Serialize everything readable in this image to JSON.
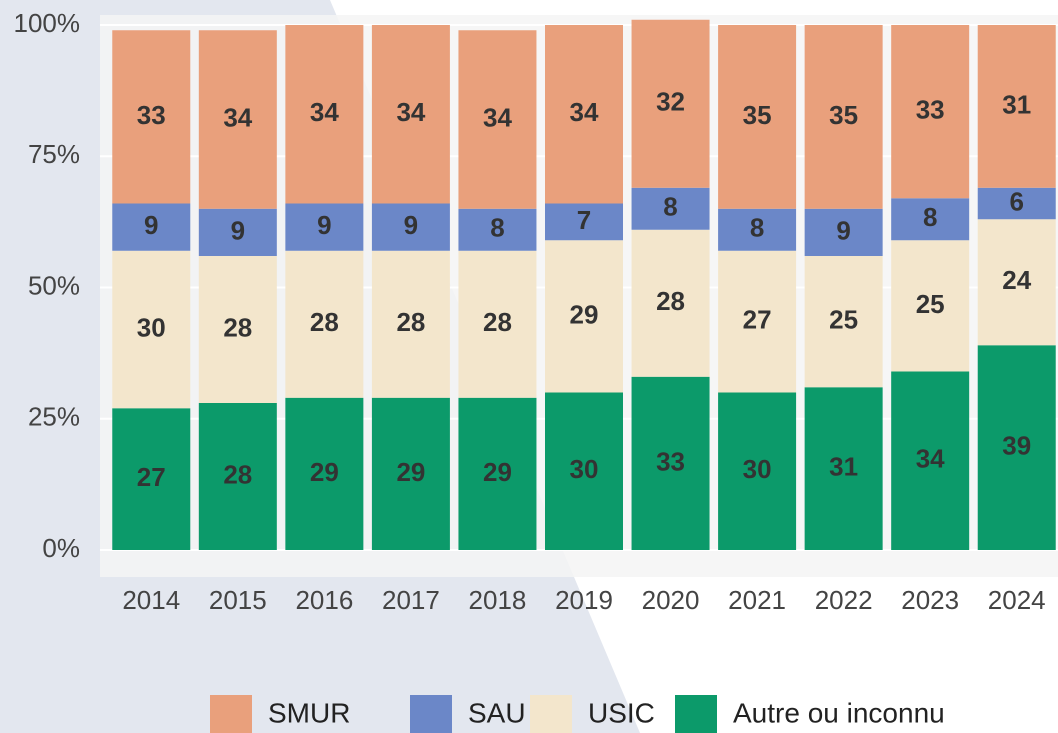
{
  "chart_data": {
    "type": "stacked_bar",
    "categories": [
      "2014",
      "2015",
      "2016",
      "2017",
      "2018",
      "2019",
      "2020",
      "2021",
      "2022",
      "2023",
      "2024"
    ],
    "series": [
      {
        "name": "SMUR",
        "color": "#e9a07c",
        "values": [
          33,
          34,
          34,
          34,
          34,
          34,
          32,
          35,
          35,
          33,
          31
        ]
      },
      {
        "name": "SAU",
        "color": "#6b87c8",
        "values": [
          9,
          9,
          9,
          9,
          8,
          7,
          8,
          8,
          9,
          8,
          6
        ]
      },
      {
        "name": "USIC",
        "color": "#f3e6cc",
        "values": [
          30,
          28,
          28,
          28,
          28,
          29,
          28,
          27,
          25,
          25,
          24
        ]
      },
      {
        "name": "Autre ou inconnu",
        "color": "#0c9a6a",
        "values": [
          27,
          28,
          29,
          29,
          29,
          30,
          33,
          30,
          31,
          34,
          39
        ]
      }
    ],
    "ylim": [
      0,
      100
    ],
    "yticks": [
      {
        "value": 0,
        "label": "0%"
      },
      {
        "value": 25,
        "label": "25%"
      },
      {
        "value": 50,
        "label": "50%"
      },
      {
        "value": 75,
        "label": "75%"
      },
      {
        "value": 100,
        "label": "100%"
      }
    ],
    "grid": true,
    "legend": "bottom"
  }
}
